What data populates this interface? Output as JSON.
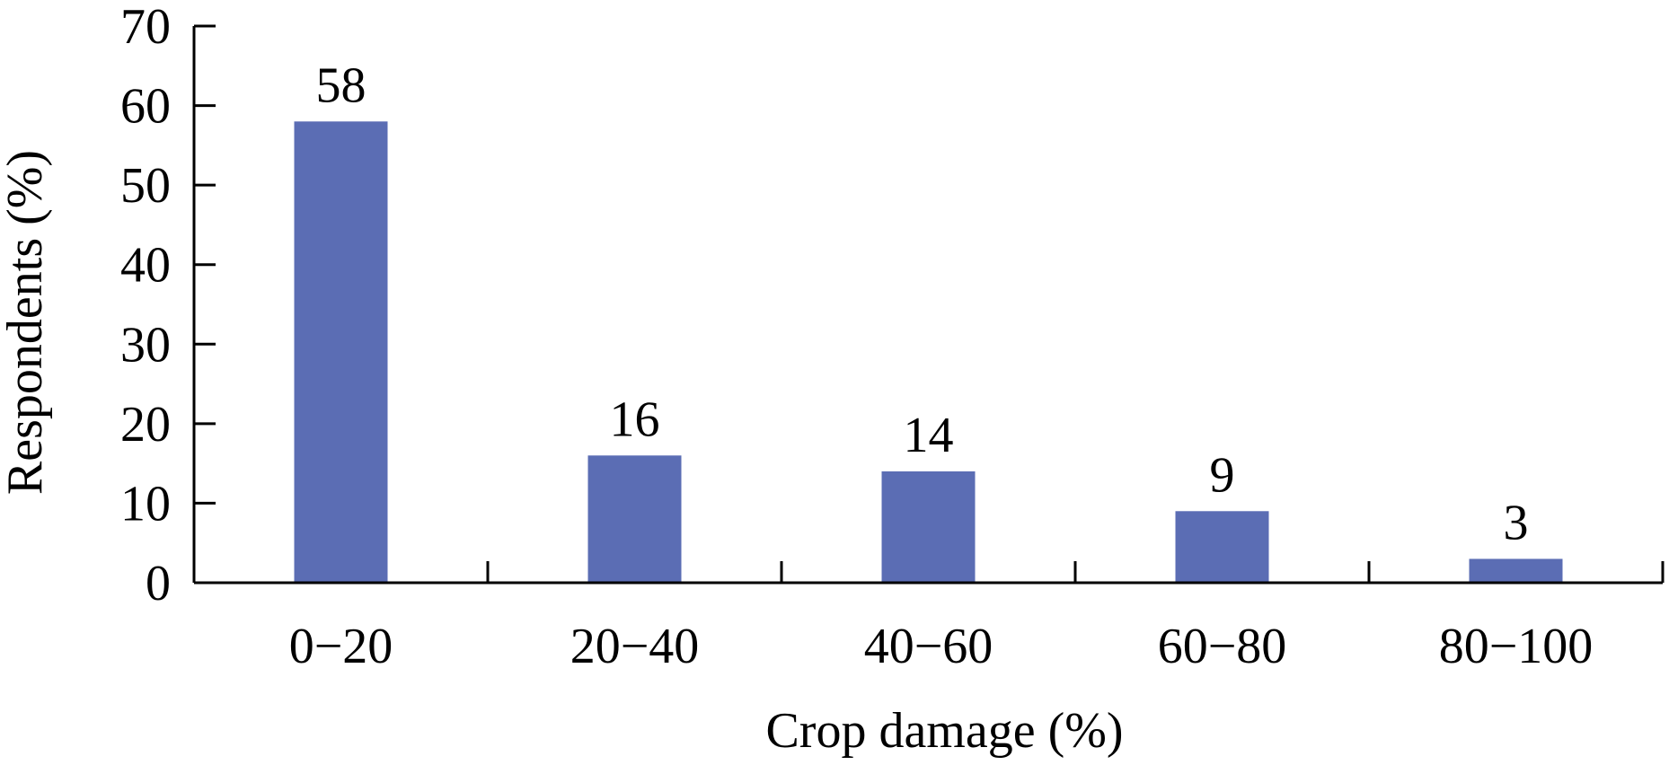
{
  "chart_data": {
    "type": "bar",
    "categories": [
      "0−20",
      "20−40",
      "40−60",
      "60−80",
      "80−100"
    ],
    "values": [
      58,
      16,
      14,
      9,
      3
    ],
    "data_labels": [
      "58",
      "16",
      "14",
      "9",
      "3"
    ],
    "title": "",
    "xlabel": "Crop damage (%)",
    "ylabel": "Respondents (%)",
    "ylim": [
      0,
      70
    ],
    "yticks": [
      0,
      10,
      20,
      30,
      40,
      50,
      60,
      70
    ],
    "ytick_labels": [
      "0",
      "10",
      "20",
      "30",
      "40",
      "50",
      "60",
      "70"
    ],
    "grid": false,
    "legend": "none",
    "bar_color": "#5b6db4"
  }
}
